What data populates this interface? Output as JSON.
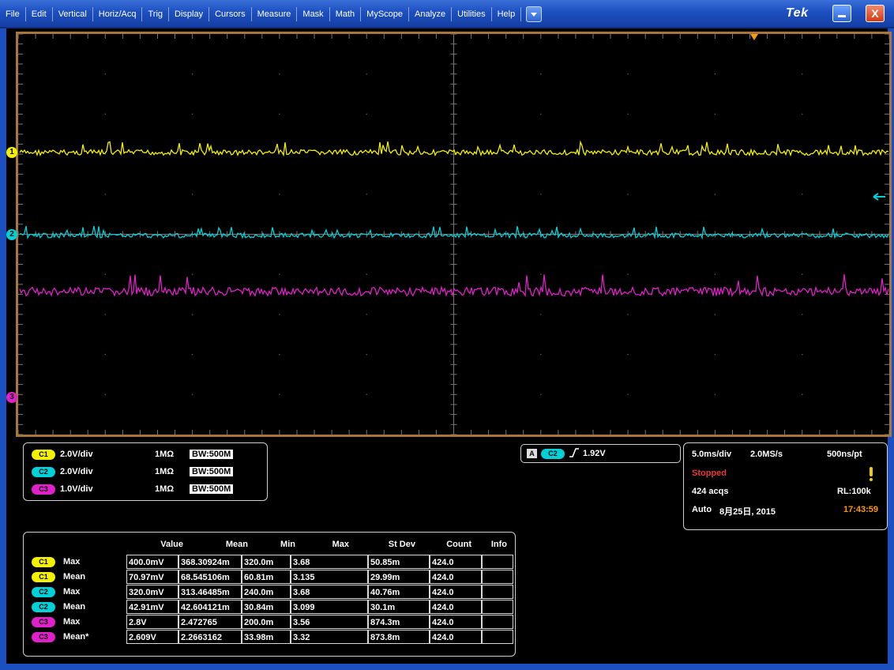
{
  "menu": {
    "items": [
      "File",
      "Edit",
      "Vertical",
      "Horiz/Acq",
      "Trig",
      "Display",
      "Cursors",
      "Measure",
      "Mask",
      "Math",
      "MyScope",
      "Analyze",
      "Utilities",
      "Help"
    ],
    "logo": "Tek",
    "close_label": "X"
  },
  "colors": {
    "ch1": "#f3f000",
    "ch2": "#00d0d8",
    "ch3": "#e020c8",
    "frame": "#a8753a",
    "menubar": "#1c4fc0"
  },
  "markers": {
    "ch1": "1",
    "ch2": "2",
    "ch3": "3"
  },
  "channels": [
    {
      "badge": "C1",
      "scale": "2.0V/div",
      "impedance": "1MΩ",
      "bw": "BW:500M"
    },
    {
      "badge": "C2",
      "scale": "2.0V/div",
      "impedance": "1MΩ",
      "bw": "BW:500M"
    },
    {
      "badge": "C3",
      "scale": "1.0V/div",
      "impedance": "1MΩ",
      "bw": "BW:500M"
    }
  ],
  "trigger": {
    "source_letter": "A",
    "channel": "C2",
    "level": "1.92V",
    "slope_icon": "rising-edge-icon"
  },
  "horizontal": {
    "timebase": "5.0ms/div",
    "sample_rate": "2.0MS/s",
    "resolution": "500ns/pt",
    "status": "Stopped",
    "acqs": "424 acqs",
    "record_length": "RL:100k",
    "mode": "Auto",
    "date": "8月25日, 2015",
    "time": "17:43:59"
  },
  "measurements": {
    "headers": [
      "Value",
      "Mean",
      "Min",
      "Max",
      "St Dev",
      "Count",
      "Info"
    ],
    "rows": [
      {
        "badge": "C1",
        "type": "Max",
        "value": "400.0mV",
        "mean": "368.30924m",
        "min": "320.0m",
        "max": "3.68",
        "stdev": "50.85m",
        "count": "424.0",
        "info": ""
      },
      {
        "badge": "C1",
        "type": "Mean",
        "value": "70.97mV",
        "mean": "68.545106m",
        "min": "60.81m",
        "max": "3.135",
        "stdev": "29.99m",
        "count": "424.0",
        "info": ""
      },
      {
        "badge": "C2",
        "type": "Max",
        "value": "320.0mV",
        "mean": "313.46485m",
        "min": "240.0m",
        "max": "3.68",
        "stdev": "40.76m",
        "count": "424.0",
        "info": ""
      },
      {
        "badge": "C2",
        "type": "Mean",
        "value": "42.91mV",
        "mean": "42.604121m",
        "min": "30.84m",
        "max": "3.099",
        "stdev": "30.1m",
        "count": "424.0",
        "info": ""
      },
      {
        "badge": "C3",
        "type": "Max",
        "value": "2.8V",
        "mean": "2.472765",
        "min": "200.0m",
        "max": "3.56",
        "stdev": "874.3m",
        "count": "424.0",
        "info": ""
      },
      {
        "badge": "C3",
        "type": "Mean*",
        "value": "2.609V",
        "mean": "2.2663162",
        "min": "33.98m",
        "max": "3.32",
        "stdev": "873.8m",
        "count": "424.0",
        "info": ""
      }
    ]
  }
}
